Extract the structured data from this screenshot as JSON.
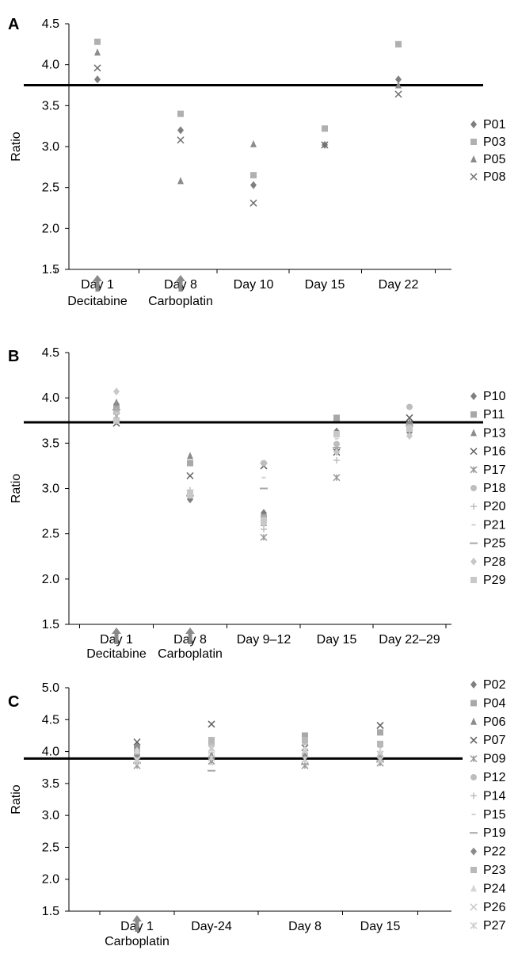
{
  "chart_data": [
    {
      "type": "scatter",
      "panel_label": "A",
      "title": "",
      "xlabel": "",
      "ylabel": "Ratio",
      "ylim": [
        1.5,
        4.5
      ],
      "yticks": [
        "1.5",
        "2.0",
        "2.5",
        "3.0",
        "3.5",
        "4.0",
        "4.5"
      ],
      "categories": [
        "Day 1",
        "Day 8",
        "Day 10",
        "Day 15",
        "Day 22"
      ],
      "reference_line": 3.75,
      "grid": false,
      "legend_position": "right",
      "annotations": [
        {
          "category": "Day 1",
          "text": "Decitabine"
        },
        {
          "category": "Day 8",
          "text": "Carboplatin"
        }
      ],
      "series": [
        {
          "name": "P01",
          "marker": "diamond",
          "color": "#7f7f7f",
          "values": [
            3.82,
            3.2,
            2.53,
            3.02,
            3.82
          ]
        },
        {
          "name": "P03",
          "marker": "square",
          "color": "#b0b0b0",
          "values": [
            4.28,
            3.4,
            2.65,
            3.22,
            4.25
          ]
        },
        {
          "name": "P05",
          "marker": "triangle",
          "color": "#8c8c8c",
          "values": [
            4.15,
            2.58,
            3.03,
            null,
            3.75
          ]
        },
        {
          "name": "P08",
          "marker": "x",
          "color": "#707070",
          "values": [
            3.96,
            3.08,
            2.31,
            3.02,
            3.64
          ]
        }
      ]
    },
    {
      "type": "scatter",
      "panel_label": "B",
      "title": "",
      "xlabel": "",
      "ylabel": "Ratio",
      "ylim": [
        1.5,
        4.5
      ],
      "yticks": [
        "1.5",
        "2.0",
        "2.5",
        "3.0",
        "3.5",
        "4.0",
        "4.5"
      ],
      "categories": [
        "Day 1",
        "Day 8",
        "Day 9–12",
        "Day 15",
        "Day 22–29"
      ],
      "reference_line": 3.73,
      "grid": false,
      "legend_position": "right",
      "annotations": [
        {
          "category": "Day 1",
          "text": "Decitabine"
        },
        {
          "category": "Day 8",
          "text": "Carboplatin"
        }
      ],
      "series": [
        {
          "name": "P10",
          "marker": "diamond",
          "color": "#7f7f7f",
          "values": [
            3.93,
            2.88,
            2.73,
            3.63,
            3.62
          ]
        },
        {
          "name": "P11",
          "marker": "square",
          "color": "#a8a8a8",
          "values": [
            3.88,
            3.28,
            2.68,
            3.78,
            3.7
          ]
        },
        {
          "name": "P13",
          "marker": "triangle",
          "color": "#8c8c8c",
          "values": [
            3.95,
            3.36,
            2.62,
            3.43,
            3.73
          ]
        },
        {
          "name": "P16",
          "marker": "x",
          "color": "#606060",
          "values": [
            3.72,
            3.14,
            3.25,
            3.4,
            3.78
          ]
        },
        {
          "name": "P17",
          "marker": "asterisk",
          "color": "#9a9a9a",
          "values": [
            3.8,
            2.95,
            2.46,
            3.12,
            3.68
          ]
        },
        {
          "name": "P18",
          "marker": "circle",
          "color": "#bdbdbd",
          "values": [
            3.85,
            2.92,
            3.28,
            3.49,
            3.9
          ]
        },
        {
          "name": "P20",
          "marker": "plus",
          "color": "#bdbdbd",
          "values": [
            3.82,
            2.98,
            2.55,
            3.31,
            3.63
          ]
        },
        {
          "name": "P21",
          "marker": "dash",
          "color": "#cfcfcf",
          "values": [
            3.83,
            2.95,
            3.12,
            3.55,
            3.7
          ]
        },
        {
          "name": "P25",
          "marker": "longdash",
          "color": "#a8a8a8",
          "values": [
            3.87,
            2.92,
            3.0,
            3.45,
            3.69
          ]
        },
        {
          "name": "P28",
          "marker": "diamond",
          "color": "#c8c8c8",
          "values": [
            4.07,
            2.96,
            2.61,
            3.4,
            3.58
          ]
        },
        {
          "name": "P29",
          "marker": "square",
          "color": "#c8c8c8",
          "values": [
            3.75,
            2.93,
            2.65,
            3.6,
            3.66
          ]
        }
      ]
    },
    {
      "type": "scatter",
      "panel_label": "C",
      "title": "",
      "xlabel": "",
      "ylabel": "Ratio",
      "ylim": [
        1.5,
        5.0
      ],
      "yticks": [
        "1.5",
        "2.0",
        "2.5",
        "3.0",
        "3.5",
        "4.0",
        "4.5",
        "5.0"
      ],
      "categories": [
        "Day 1",
        "Day-24",
        "Day 8",
        "Day 15"
      ],
      "reference_line": 3.89,
      "grid": false,
      "legend_position": "right",
      "annotations": [
        {
          "category": "Day 1",
          "text": "Carboplatin"
        }
      ],
      "series": [
        {
          "name": "P02",
          "marker": "diamond",
          "color": "#7f7f7f",
          "values": [
            3.9,
            3.88,
            3.92,
            3.9
          ]
        },
        {
          "name": "P04",
          "marker": "square",
          "color": "#a8a8a8",
          "values": [
            4.05,
            4.15,
            4.25,
            4.3
          ]
        },
        {
          "name": "P06",
          "marker": "triangle",
          "color": "#8c8c8c",
          "values": [
            4.1,
            3.95,
            4.0,
            3.95
          ]
        },
        {
          "name": "P07",
          "marker": "x",
          "color": "#606060",
          "values": [
            4.15,
            4.43,
            4.06,
            4.41
          ]
        },
        {
          "name": "P09",
          "marker": "asterisk",
          "color": "#9a9a9a",
          "values": [
            3.78,
            3.85,
            3.78,
            3.82
          ]
        },
        {
          "name": "P12",
          "marker": "circle",
          "color": "#bdbdbd",
          "values": [
            3.95,
            4.1,
            4.15,
            4.1
          ]
        },
        {
          "name": "P14",
          "marker": "plus",
          "color": "#bdbdbd",
          "values": [
            3.92,
            3.98,
            3.95,
            3.92
          ]
        },
        {
          "name": "P15",
          "marker": "dash",
          "color": "#cfcfcf",
          "values": [
            3.8,
            3.8,
            3.85,
            3.85
          ]
        },
        {
          "name": "P19",
          "marker": "longdash",
          "color": "#a8a8a8",
          "values": [
            3.82,
            3.7,
            3.8,
            3.84
          ]
        },
        {
          "name": "P22",
          "marker": "diamond",
          "color": "#8a8a8a",
          "values": [
            3.95,
            3.92,
            3.96,
            3.93
          ]
        },
        {
          "name": "P23",
          "marker": "square",
          "color": "#b8b8b8",
          "values": [
            4.0,
            4.18,
            4.18,
            4.12
          ]
        },
        {
          "name": "P24",
          "marker": "triangle",
          "color": "#d6d6d6",
          "values": [
            4.02,
            4.05,
            4.03,
            4.0
          ]
        },
        {
          "name": "P26",
          "marker": "x",
          "color": "#c8c8c8",
          "values": [
            3.88,
            4.05,
            3.99,
            3.96
          ]
        },
        {
          "name": "P27",
          "marker": "asterisk",
          "color": "#d0d0d0",
          "values": [
            3.86,
            3.9,
            3.88,
            3.87
          ]
        }
      ]
    }
  ]
}
